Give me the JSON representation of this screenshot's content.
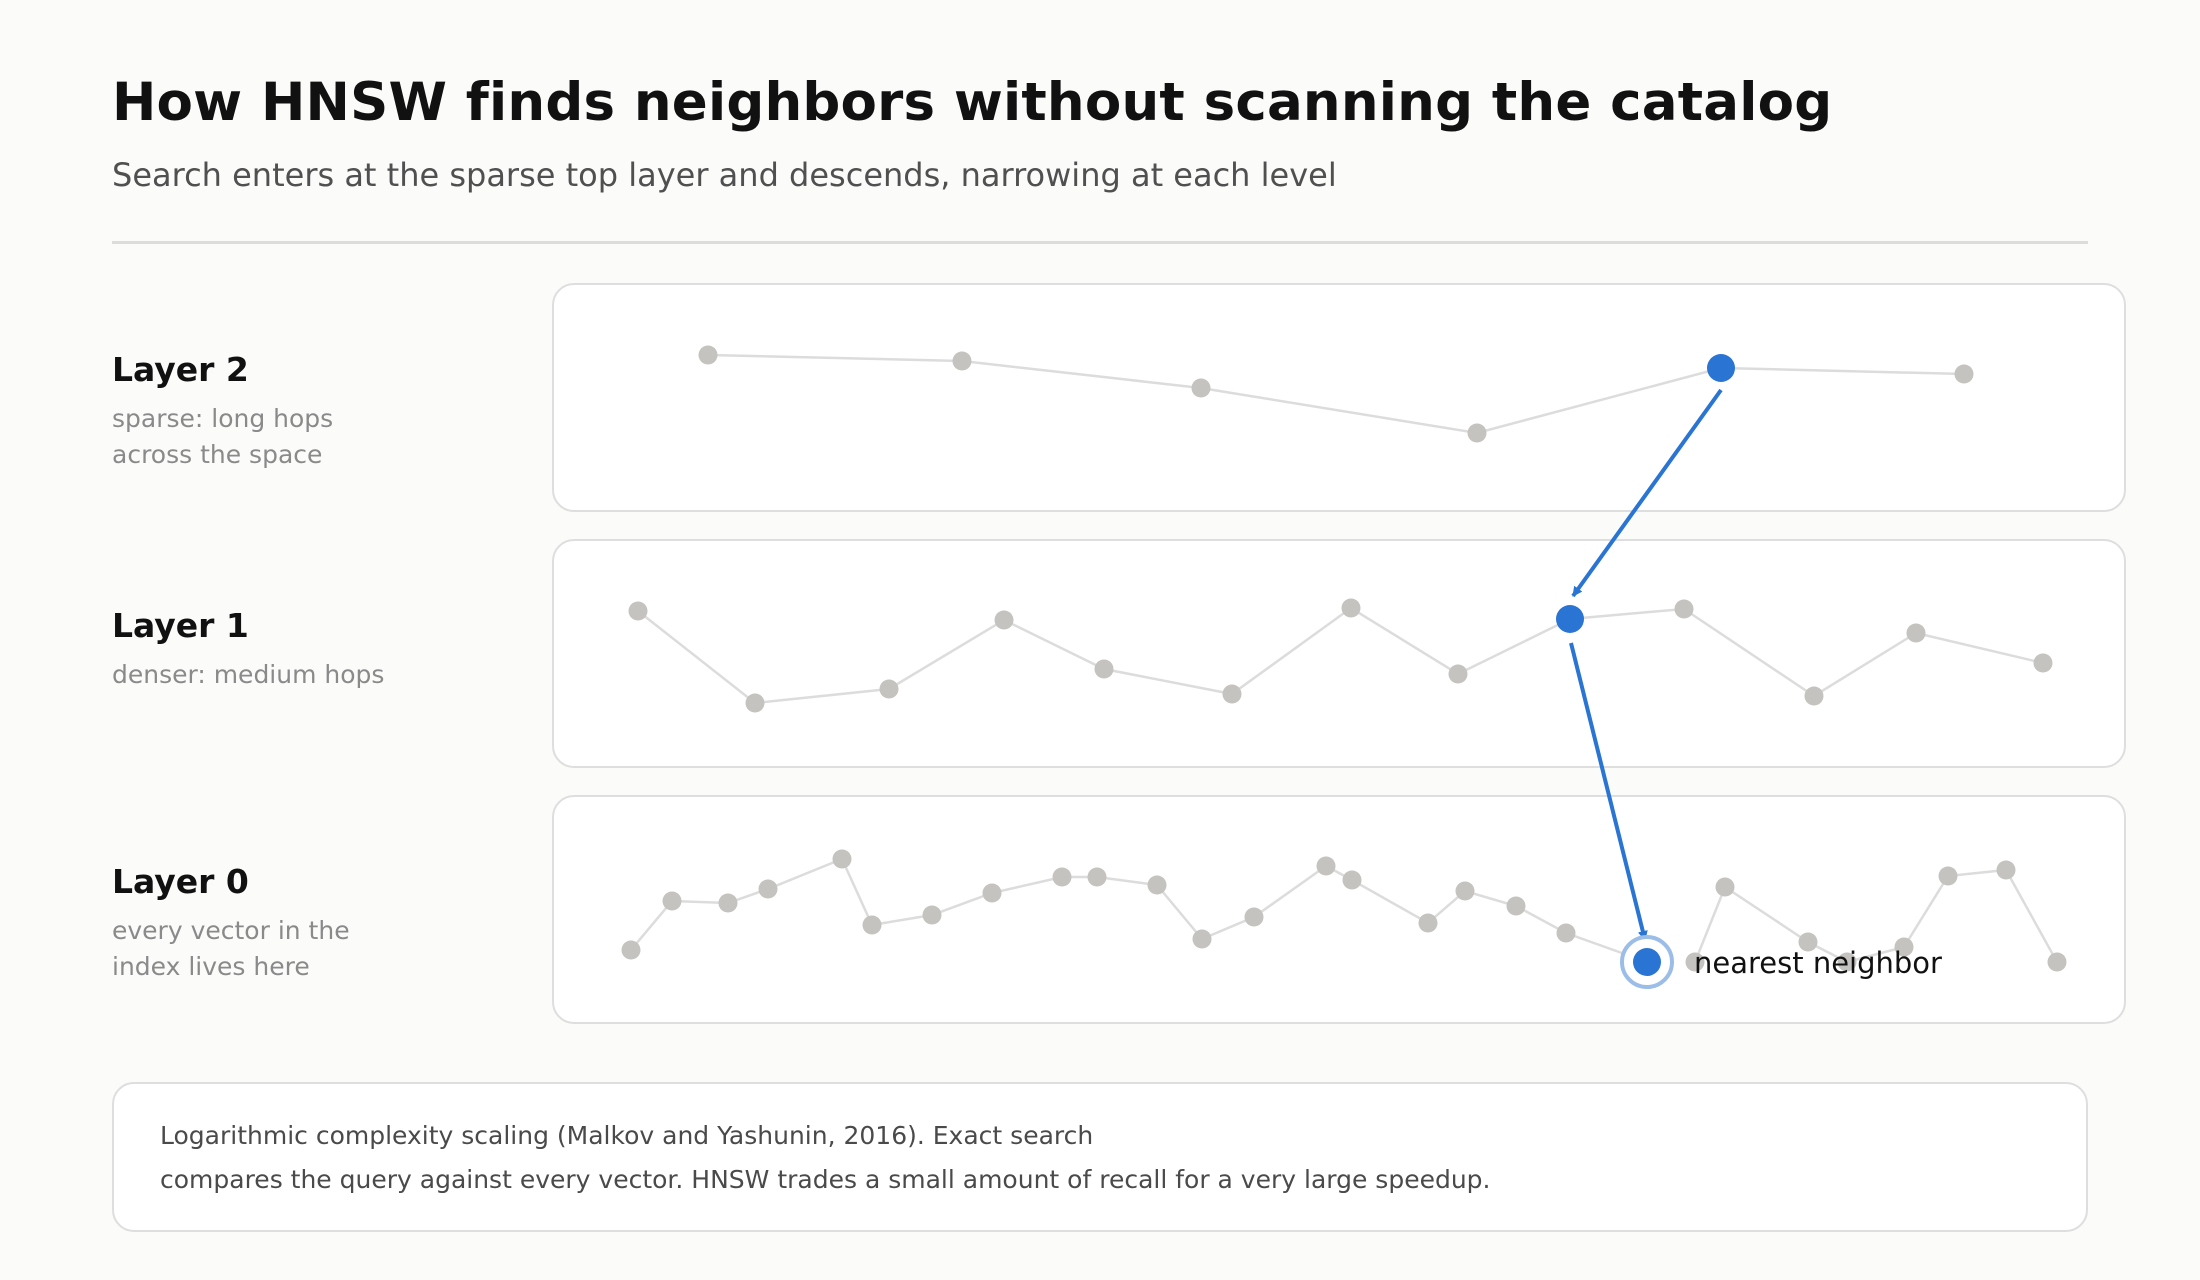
{
  "title": "How HNSW finds neighbors without scanning the catalog",
  "subtitle": "Search enters at the sparse top layer and descends, narrowing at each level",
  "layers": [
    {
      "name": "Layer 2",
      "desc_lines": [
        "sparse: long hops",
        "across the space"
      ]
    },
    {
      "name": "Layer 1",
      "desc_lines": [
        "denser: medium hops"
      ]
    },
    {
      "name": "Layer 0",
      "desc_lines": [
        "every vector in the",
        "index lives here"
      ]
    }
  ],
  "result_label": "nearest neighbor",
  "note_lines": [
    "Logarithmic complexity scaling (Malkov and Yashunin, 2016). Exact search",
    "compares the query against every vector. HNSW trades a small amount of recall for a very large speedup."
  ],
  "colors": {
    "accent": "#2a74d3",
    "node": "#c4c3bf",
    "edge": "#dcdcdc",
    "halo": "#9cbde8"
  }
}
